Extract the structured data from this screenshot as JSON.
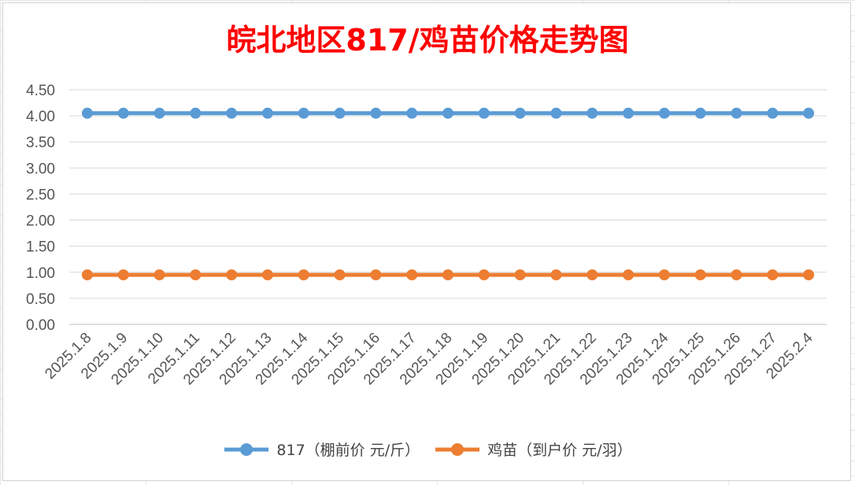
{
  "chart_data": {
    "type": "line",
    "title": "皖北地区817/鸡苗价格走势图",
    "categories": [
      "2025.1.8",
      "2025.1.9",
      "2025.1.10",
      "2025.1.11",
      "2025.1.12",
      "2025.1.13",
      "2025.1.14",
      "2025.1.15",
      "2025.1.16",
      "2025.1.17",
      "2025.1.18",
      "2025.1.19",
      "2025.1.20",
      "2025.1.21",
      "2025.1.22",
      "2025.1.23",
      "2025.1.24",
      "2025.1.25",
      "2025.1.26",
      "2025.1.27",
      "2025.2.4"
    ],
    "y_ticks": [
      "0.00",
      "0.50",
      "1.00",
      "1.50",
      "2.00",
      "2.50",
      "3.00",
      "3.50",
      "4.00",
      "4.50"
    ],
    "ylim": [
      0,
      4.5
    ],
    "grid": true,
    "legend_position": "bottom",
    "series": [
      {
        "name": "817（棚前价 元/斤）",
        "color": "#5b9bd5",
        "values": [
          4.05,
          4.05,
          4.05,
          4.05,
          4.05,
          4.05,
          4.05,
          4.05,
          4.05,
          4.05,
          4.05,
          4.05,
          4.05,
          4.05,
          4.05,
          4.05,
          4.05,
          4.05,
          4.05,
          4.05,
          4.05
        ]
      },
      {
        "name": "鸡苗（到户价 元/羽）",
        "color": "#ed7d31",
        "values": [
          0.95,
          0.95,
          0.95,
          0.95,
          0.95,
          0.95,
          0.95,
          0.95,
          0.95,
          0.95,
          0.95,
          0.95,
          0.95,
          0.95,
          0.95,
          0.95,
          0.95,
          0.95,
          0.95,
          0.95,
          0.95
        ]
      }
    ]
  }
}
